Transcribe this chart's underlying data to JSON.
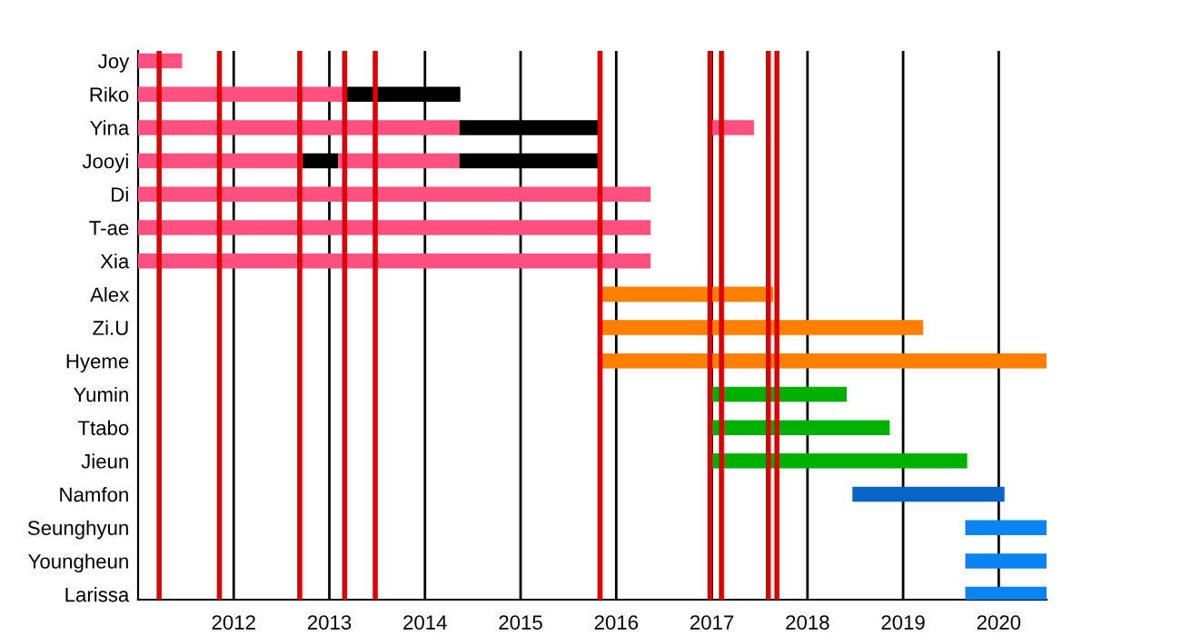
{
  "chart_data": {
    "type": "bar",
    "orientation": "horizontal",
    "categories": [
      "Joy",
      "Riko",
      "Yina",
      "Jooyi",
      "Di",
      "T-ae",
      "Xia",
      "Alex",
      "Zi.U",
      "Hyeme",
      "Yumin",
      "Ttabo",
      "Jieun",
      "Namfon",
      "Seunghyun",
      "Youngheun",
      "Larissa"
    ],
    "series": [
      {
        "base": [
          2011.0,
          2011.0,
          2011.0,
          2011.0,
          2011.0,
          2011.0,
          2011.0,
          2015.83,
          2015.83,
          2015.83,
          2016.97,
          2016.97,
          2016.97,
          2018.47,
          2019.65,
          2019.65,
          2019.65
        ],
        "values": [
          0.46,
          2.18,
          3.36,
          1.72,
          5.36,
          5.36,
          5.36,
          1.81,
          3.38,
          4.67,
          1.44,
          1.89,
          2.7,
          1.59,
          0.85,
          0.85,
          0.85
        ],
        "colors": [
          "#ff5080",
          "#ff5080",
          "#ff5080",
          "#ff5080",
          "#ff5080",
          "#ff5080",
          "#ff5080",
          "#ff8000",
          "#ff8000",
          "#ff8000",
          "#00b000",
          "#00b000",
          "#00b000",
          "#0a64c8",
          "#0a84f0",
          "#0a84f0",
          "#0a84f0"
        ]
      },
      {
        "base": [
          null,
          2013.18,
          2014.36,
          2012.72,
          null,
          null,
          null,
          null,
          null,
          null,
          null,
          null,
          null,
          null,
          null,
          null,
          null
        ],
        "values": [
          null,
          1.19,
          1.48,
          0.37,
          null,
          null,
          null,
          null,
          null,
          null,
          null,
          null,
          null,
          null,
          null,
          null,
          null
        ],
        "color": "#000000"
      },
      {
        "base": [
          null,
          null,
          2016.97,
          2013.09,
          null,
          null,
          null,
          null,
          null,
          null,
          null,
          null,
          null,
          null,
          null,
          null,
          null
        ],
        "values": [
          null,
          null,
          0.47,
          1.27,
          null,
          null,
          null,
          null,
          null,
          null,
          null,
          null,
          null,
          null,
          null,
          null,
          null
        ],
        "color": "#ff5080"
      },
      {
        "base": [
          null,
          null,
          null,
          2014.36,
          null,
          null,
          null,
          null,
          null,
          null,
          null,
          null,
          null,
          null,
          null,
          null,
          null
        ],
        "values": [
          null,
          null,
          null,
          1.48,
          null,
          null,
          null,
          null,
          null,
          null,
          null,
          null,
          null,
          null,
          null,
          null,
          null
        ],
        "color": "#000000"
      }
    ],
    "xlim": [
      2011.0,
      2020.5
    ],
    "xticks": [
      2012,
      2013,
      2014,
      2015,
      2016,
      2017,
      2018,
      2019,
      2020
    ],
    "grid": "x",
    "legend": false,
    "ref_lines": [
      {
        "axis": "x",
        "value": 2011.22,
        "color": "#e00000"
      },
      {
        "axis": "x",
        "value": 2011.85,
        "color": "#e00000"
      },
      {
        "axis": "x",
        "value": 2012.69,
        "color": "#e00000"
      },
      {
        "axis": "x",
        "value": 2013.16,
        "color": "#e00000"
      },
      {
        "axis": "x",
        "value": 2013.48,
        "color": "#e00000"
      },
      {
        "axis": "x",
        "value": 2015.83,
        "color": "#e00000"
      },
      {
        "axis": "x",
        "value": 2016.98,
        "color": "#e00000"
      },
      {
        "axis": "x",
        "value": 2017.1,
        "color": "#e00000"
      },
      {
        "axis": "x",
        "value": 2017.59,
        "color": "#e00000"
      },
      {
        "axis": "x",
        "value": 2017.68,
        "color": "#e00000"
      }
    ]
  }
}
